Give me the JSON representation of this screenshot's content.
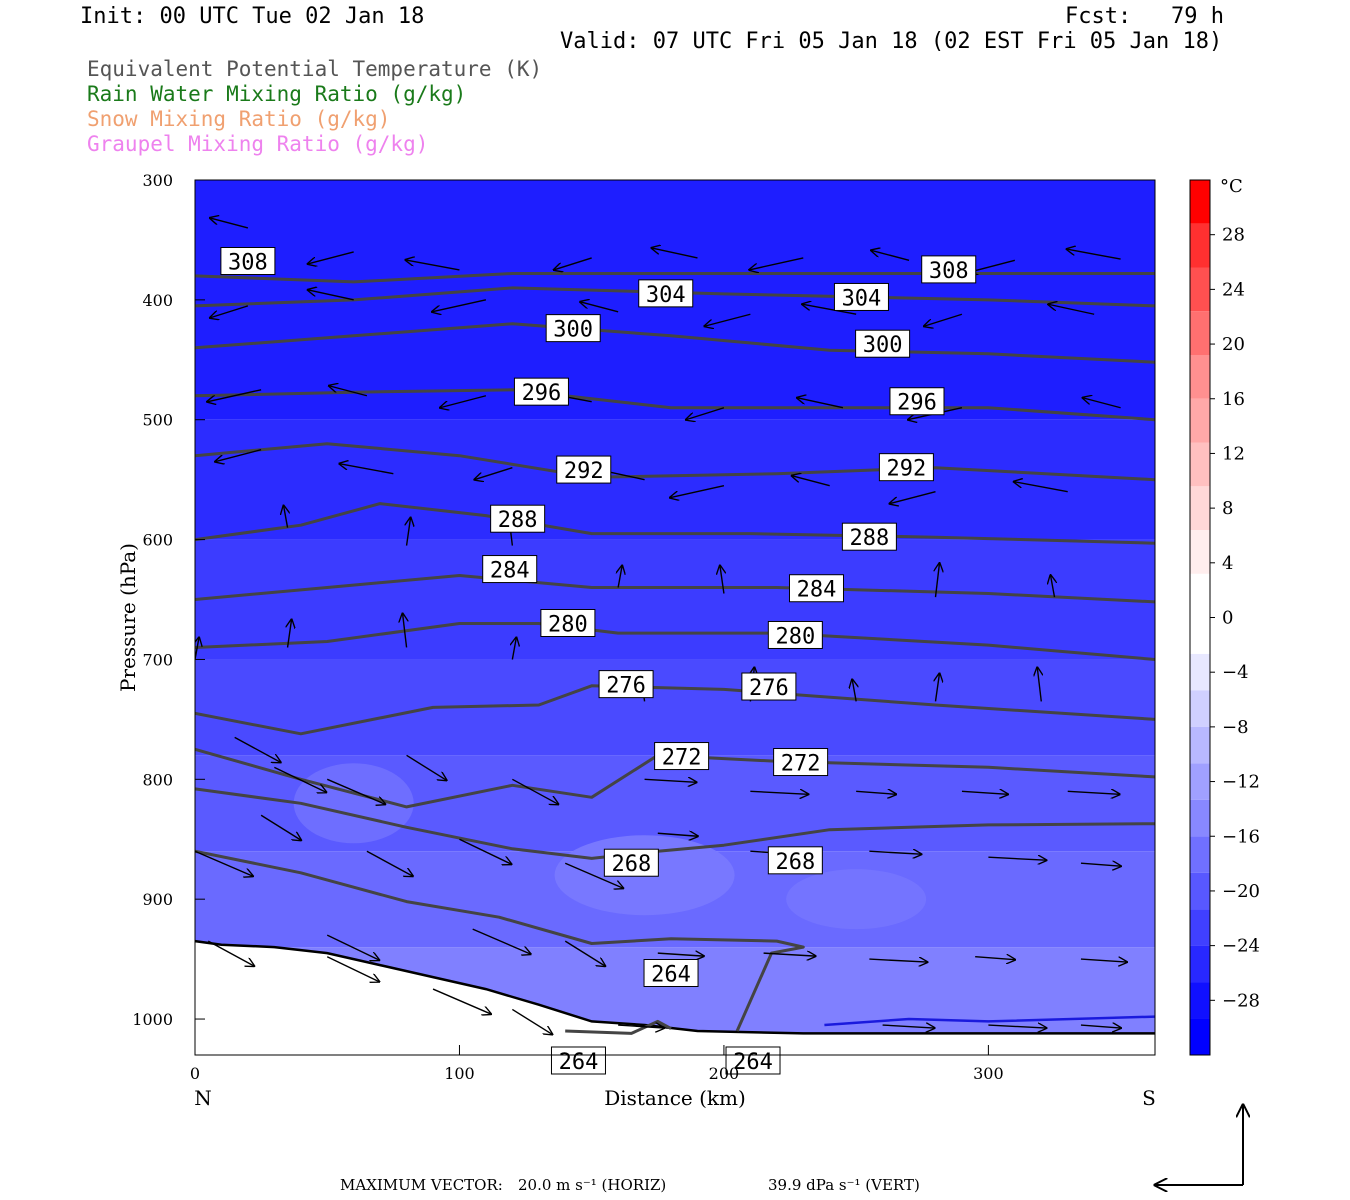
{
  "header": {
    "init": "Init: 00 UTC Tue 02 Jan 18",
    "fcst": "Fcst:   79 h",
    "valid": "Valid: 07 UTC Fri 05 Jan 18 (02 EST Fri 05 Jan 18)"
  },
  "legend": [
    {
      "label": "Equivalent Potential Temperature (K)",
      "color": "#555555"
    },
    {
      "label": "Rain Water Mixing Ratio (g/kg)",
      "color": "#1a7a1a"
    },
    {
      "label": "Snow Mixing Ratio (g/kg)",
      "color": "#f0a070"
    },
    {
      "label": "Graupel Mixing Ratio (g/kg)",
      "color": "#ee82ee"
    }
  ],
  "footer": {
    "max_vector_label": "MAXIMUM VECTOR:",
    "horiz": "20.0 m s⁻¹ (HORIZ)",
    "vert": "39.9 dPa s⁻¹ (VERT)"
  },
  "chart_data": {
    "type": "cross-section",
    "xlabel": "Distance (km)",
    "ylabel": "Pressure (hPa)",
    "x_end_labels": [
      "N",
      "S"
    ],
    "xlim": [
      0,
      363
    ],
    "ylim": [
      1030,
      300
    ],
    "x_ticks": [
      0,
      100,
      200,
      300
    ],
    "y_ticks": [
      300,
      400,
      500,
      600,
      700,
      800,
      900,
      1000
    ],
    "colorbar": {
      "unit": "°C",
      "ticks": [
        28,
        24,
        20,
        16,
        12,
        8,
        4,
        0,
        -4,
        -8,
        -12,
        -16,
        -20,
        -24,
        -28
      ],
      "range": [
        -32,
        32
      ],
      "colors_warm": [
        "#ffffff",
        "#ffeeee",
        "#ffd8d8",
        "#ffc0c0",
        "#ffa8a8",
        "#ff9090",
        "#ff7070",
        "#ff5050",
        "#ff3030",
        "#ff0000"
      ],
      "colors_cold": [
        "#ffffff",
        "#e8e8ff",
        "#d0d0ff",
        "#b8b8ff",
        "#a0a0ff",
        "#8888ff",
        "#7070ff",
        "#5858ff",
        "#4040ff",
        "#2828ff",
        "#1010ff",
        "#0000ff"
      ]
    },
    "theta_e_contours": [
      {
        "value": 308,
        "points": [
          [
            0,
            380
          ],
          [
            60,
            385
          ],
          [
            120,
            378
          ],
          [
            200,
            378
          ],
          [
            300,
            378
          ],
          [
            363,
            378
          ]
        ],
        "labels": [
          [
            20,
            368
          ],
          [
            285,
            375
          ]
        ]
      },
      {
        "value": 304,
        "points": [
          [
            0,
            405
          ],
          [
            60,
            400
          ],
          [
            120,
            390
          ],
          [
            200,
            395
          ],
          [
            300,
            400
          ],
          [
            363,
            405
          ]
        ],
        "labels": [
          [
            178,
            395
          ],
          [
            252,
            398
          ]
        ]
      },
      {
        "value": 300,
        "points": [
          [
            0,
            440
          ],
          [
            60,
            430
          ],
          [
            120,
            420
          ],
          [
            180,
            430
          ],
          [
            240,
            442
          ],
          [
            300,
            445
          ],
          [
            363,
            452
          ]
        ],
        "labels": [
          [
            143,
            424
          ],
          [
            260,
            437
          ]
        ]
      },
      {
        "value": 296,
        "points": [
          [
            0,
            480
          ],
          [
            60,
            477
          ],
          [
            120,
            475
          ],
          [
            180,
            490
          ],
          [
            240,
            490
          ],
          [
            300,
            490
          ],
          [
            363,
            500
          ]
        ],
        "labels": [
          [
            131,
            477
          ],
          [
            273,
            485
          ]
        ]
      },
      {
        "value": 292,
        "points": [
          [
            0,
            530
          ],
          [
            50,
            520
          ],
          [
            100,
            530
          ],
          [
            150,
            548
          ],
          [
            220,
            545
          ],
          [
            280,
            540
          ],
          [
            363,
            550
          ]
        ],
        "labels": [
          [
            147,
            542
          ],
          [
            269,
            540
          ]
        ]
      },
      {
        "value": 288,
        "points": [
          [
            0,
            600
          ],
          [
            40,
            588
          ],
          [
            70,
            570
          ],
          [
            110,
            580
          ],
          [
            150,
            595
          ],
          [
            210,
            595
          ],
          [
            280,
            598
          ],
          [
            363,
            603
          ]
        ],
        "labels": [
          [
            122,
            583
          ],
          [
            255,
            598
          ]
        ]
      },
      {
        "value": 284,
        "points": [
          [
            0,
            650
          ],
          [
            50,
            640
          ],
          [
            100,
            630
          ],
          [
            150,
            640
          ],
          [
            220,
            640
          ],
          [
            300,
            645
          ],
          [
            363,
            652
          ]
        ],
        "labels": [
          [
            119,
            625
          ],
          [
            235,
            641
          ]
        ]
      },
      {
        "value": 280,
        "points": [
          [
            0,
            690
          ],
          [
            50,
            685
          ],
          [
            100,
            670
          ],
          [
            130,
            670
          ],
          [
            160,
            678
          ],
          [
            220,
            678
          ],
          [
            300,
            688
          ],
          [
            363,
            700
          ]
        ],
        "labels": [
          [
            141,
            670
          ],
          [
            227,
            680
          ]
        ]
      },
      {
        "value": 276,
        "points": [
          [
            0,
            745
          ],
          [
            40,
            762
          ],
          [
            90,
            740
          ],
          [
            130,
            738
          ],
          [
            150,
            722
          ],
          [
            200,
            725
          ],
          [
            280,
            738
          ],
          [
            363,
            750
          ]
        ],
        "labels": [
          [
            163,
            721
          ],
          [
            217,
            723
          ]
        ]
      },
      {
        "value": 272,
        "points": [
          [
            0,
            775
          ],
          [
            40,
            800
          ],
          [
            80,
            823
          ],
          [
            120,
            805
          ],
          [
            150,
            815
          ],
          [
            175,
            780
          ],
          [
            220,
            785
          ],
          [
            300,
            790
          ],
          [
            363,
            798
          ]
        ],
        "labels": [
          [
            184,
            781
          ],
          [
            229,
            786
          ]
        ]
      },
      {
        "value": 268,
        "points": [
          [
            0,
            808
          ],
          [
            40,
            820
          ],
          [
            80,
            840
          ],
          [
            120,
            858
          ],
          [
            150,
            866
          ],
          [
            175,
            860
          ],
          [
            200,
            855
          ],
          [
            240,
            842
          ],
          [
            300,
            838
          ],
          [
            363,
            837
          ]
        ],
        "labels": [
          [
            165,
            870
          ],
          [
            227,
            868
          ]
        ]
      },
      {
        "value": 264,
        "points": [
          [
            0,
            860
          ],
          [
            40,
            878
          ],
          [
            80,
            902
          ],
          [
            115,
            915
          ],
          [
            150,
            937
          ],
          [
            180,
            933
          ],
          [
            220,
            935
          ],
          [
            230,
            940
          ],
          [
            218,
            945
          ],
          [
            205,
            1010
          ]
        ],
        "labels": [
          [
            180,
            962
          ],
          [
            211,
            1035
          ]
        ]
      },
      {
        "value": 264,
        "points": [
          [
            140,
            1010
          ],
          [
            165,
            1012
          ],
          [
            175,
            1002
          ],
          [
            180,
            1008
          ]
        ],
        "labels": [
          [
            145,
            1035
          ]
        ]
      }
    ],
    "rain_water_contour": {
      "color": "#1a1add",
      "points": [
        [
          238,
          1005
        ],
        [
          270,
          1000
        ],
        [
          300,
          1002
        ],
        [
          363,
          998
        ]
      ]
    },
    "terrain_surface": [
      [
        0,
        935
      ],
      [
        10,
        938
      ],
      [
        30,
        940
      ],
      [
        50,
        945
      ],
      [
        70,
        955
      ],
      [
        90,
        965
      ],
      [
        110,
        975
      ],
      [
        130,
        988
      ],
      [
        150,
        1002
      ],
      [
        170,
        1005
      ],
      [
        190,
        1010
      ],
      [
        230,
        1012
      ],
      [
        363,
        1012
      ]
    ],
    "wind_vectors": [
      [
        20,
        340
      ],
      [
        60,
        360
      ],
      [
        100,
        375
      ],
      [
        150,
        365
      ],
      [
        190,
        365
      ],
      [
        230,
        365
      ],
      [
        270,
        367
      ],
      [
        310,
        367
      ],
      [
        350,
        366
      ],
      [
        20,
        405
      ],
      [
        60,
        400
      ],
      [
        110,
        400
      ],
      [
        160,
        410
      ],
      [
        210,
        412
      ],
      [
        250,
        412
      ],
      [
        290,
        412
      ],
      [
        340,
        412
      ],
      [
        25,
        475
      ],
      [
        65,
        480
      ],
      [
        110,
        480
      ],
      [
        150,
        485
      ],
      [
        200,
        490
      ],
      [
        245,
        490
      ],
      [
        290,
        490
      ],
      [
        350,
        490
      ],
      [
        25,
        525
      ],
      [
        75,
        545
      ],
      [
        120,
        540
      ],
      [
        170,
        550
      ],
      [
        200,
        555
      ],
      [
        240,
        555
      ],
      [
        280,
        560
      ],
      [
        330,
        560
      ],
      [
        35,
        590
      ],
      [
        80,
        605
      ],
      [
        120,
        605
      ],
      [
        160,
        640
      ],
      [
        200,
        645
      ],
      [
        280,
        648
      ],
      [
        325,
        648
      ],
      [
        35,
        690
      ],
      [
        80,
        690
      ],
      [
        120,
        700
      ],
      [
        170,
        735
      ],
      [
        210,
        735
      ],
      [
        250,
        735
      ],
      [
        280,
        735
      ],
      [
        320,
        735
      ],
      [
        0,
        700
      ],
      [
        15,
        765
      ],
      [
        30,
        790
      ],
      [
        50,
        800
      ],
      [
        80,
        780
      ],
      [
        120,
        800
      ],
      [
        170,
        800
      ],
      [
        210,
        810
      ],
      [
        250,
        810
      ],
      [
        290,
        810
      ],
      [
        330,
        810
      ],
      [
        0,
        860
      ],
      [
        25,
        830
      ],
      [
        65,
        860
      ],
      [
        100,
        850
      ],
      [
        140,
        870
      ],
      [
        175,
        845
      ],
      [
        210,
        860
      ],
      [
        255,
        860
      ],
      [
        300,
        865
      ],
      [
        335,
        870
      ],
      [
        5,
        935
      ],
      [
        50,
        930
      ],
      [
        105,
        925
      ],
      [
        140,
        935
      ],
      [
        175,
        945
      ],
      [
        215,
        945
      ],
      [
        255,
        950
      ],
      [
        295,
        948
      ],
      [
        335,
        950
      ],
      [
        50,
        948
      ],
      [
        90,
        975
      ],
      [
        120,
        992
      ],
      [
        160,
        1005
      ],
      [
        260,
        1005
      ],
      [
        300,
        1005
      ],
      [
        335,
        1005
      ]
    ]
  }
}
